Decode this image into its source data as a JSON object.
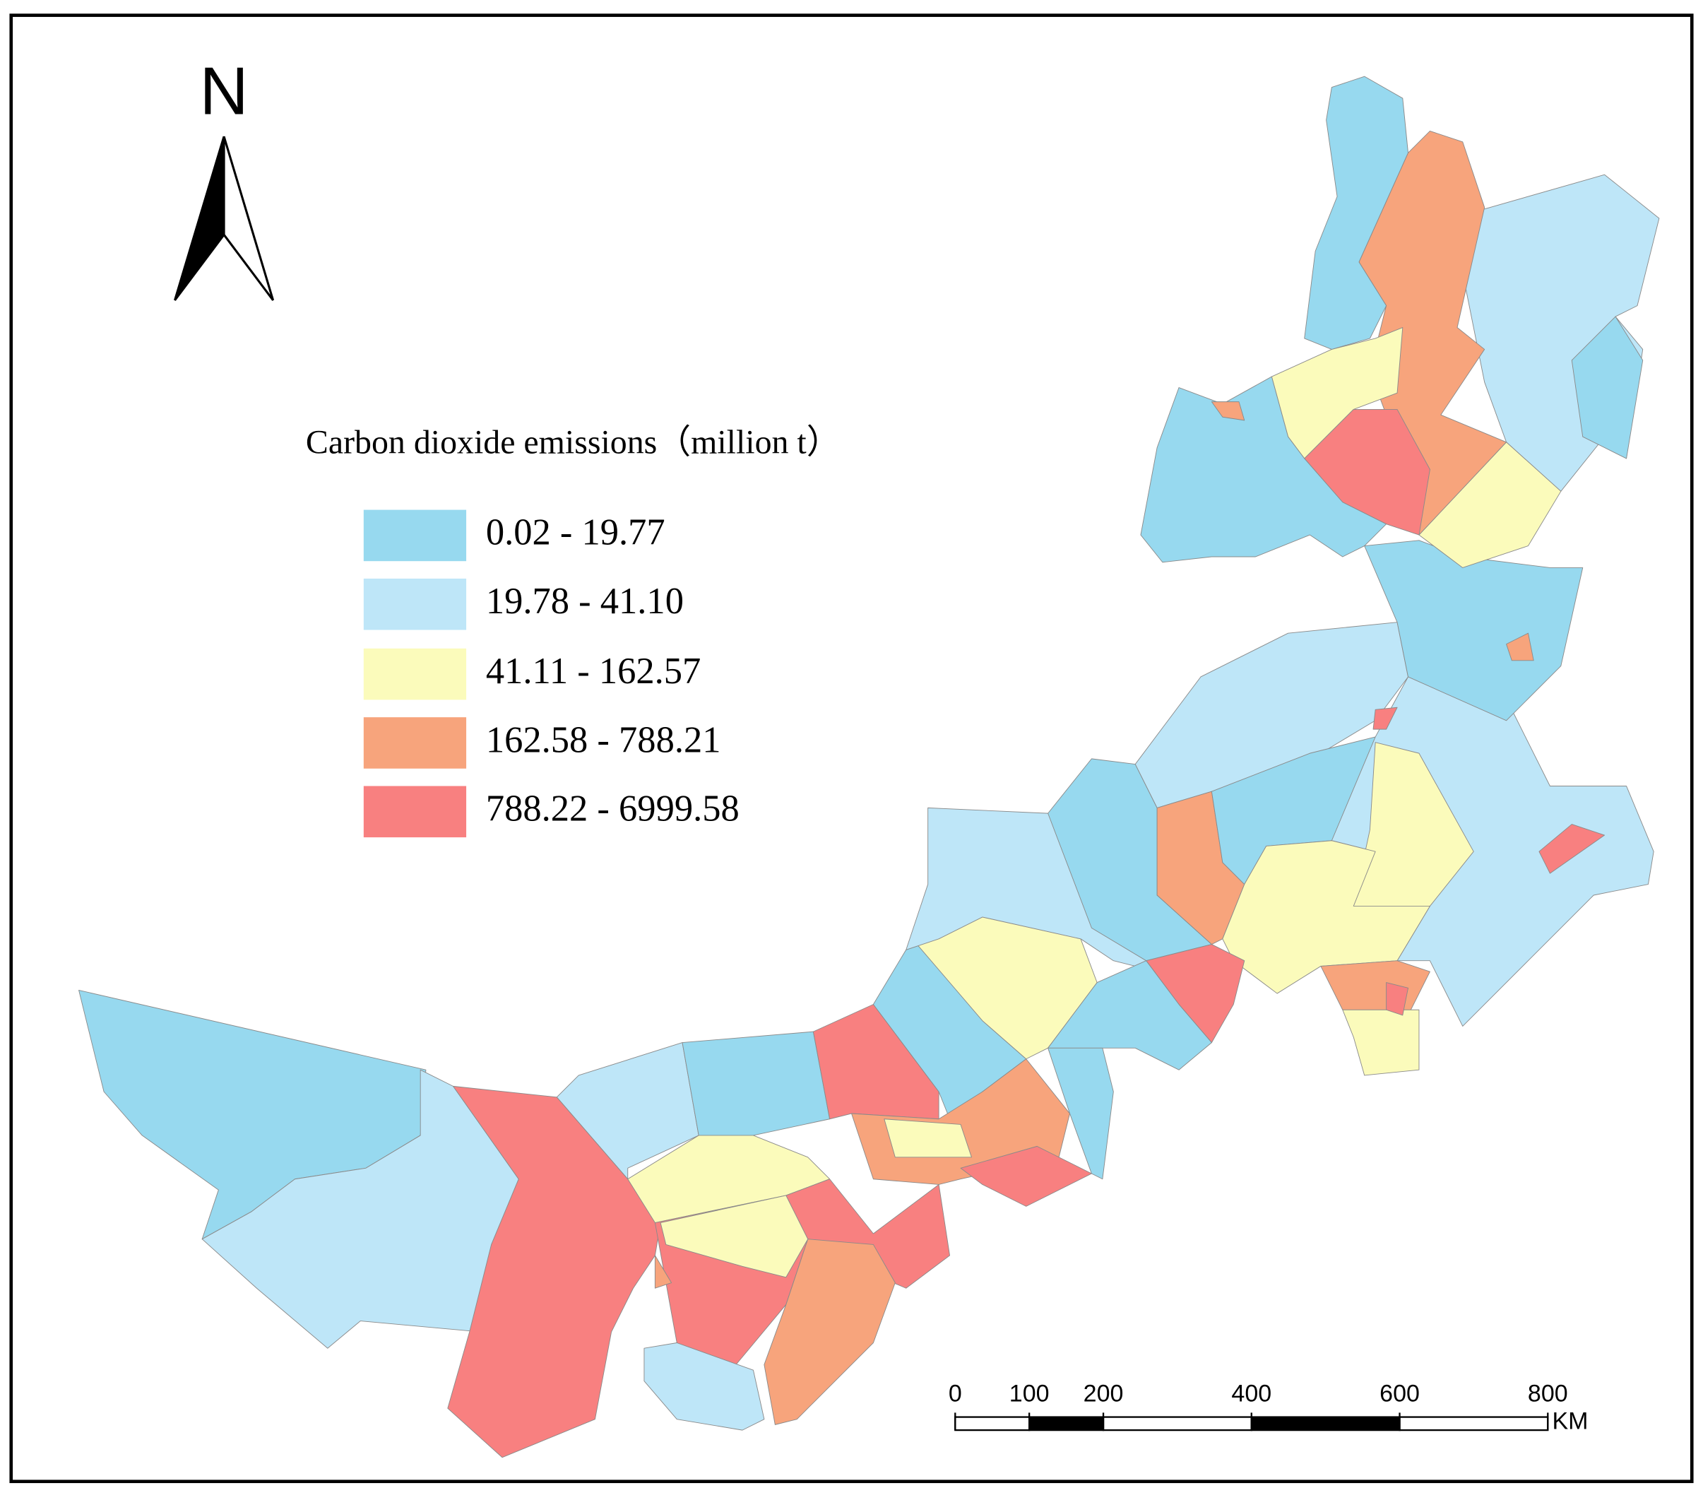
{
  "north_arrow": {
    "label": "N"
  },
  "legend": {
    "title": "Carbon dioxide emissions（million t）",
    "items": [
      {
        "label": "0.02 - 19.77",
        "color": "#97d9ef"
      },
      {
        "label": "19.78 - 41.10",
        "color": "#bee6f8"
      },
      {
        "label": "41.11 - 162.57",
        "color": "#fbfbbb"
      },
      {
        "label": "162.58 - 788.21",
        "color": "#f7a47c"
      },
      {
        "label": "788.22 - 6999.58",
        "color": "#f88080"
      }
    ]
  },
  "scale_bar": {
    "ticks": [
      0,
      100,
      200,
      400,
      600,
      800
    ],
    "unit": "KM"
  }
}
